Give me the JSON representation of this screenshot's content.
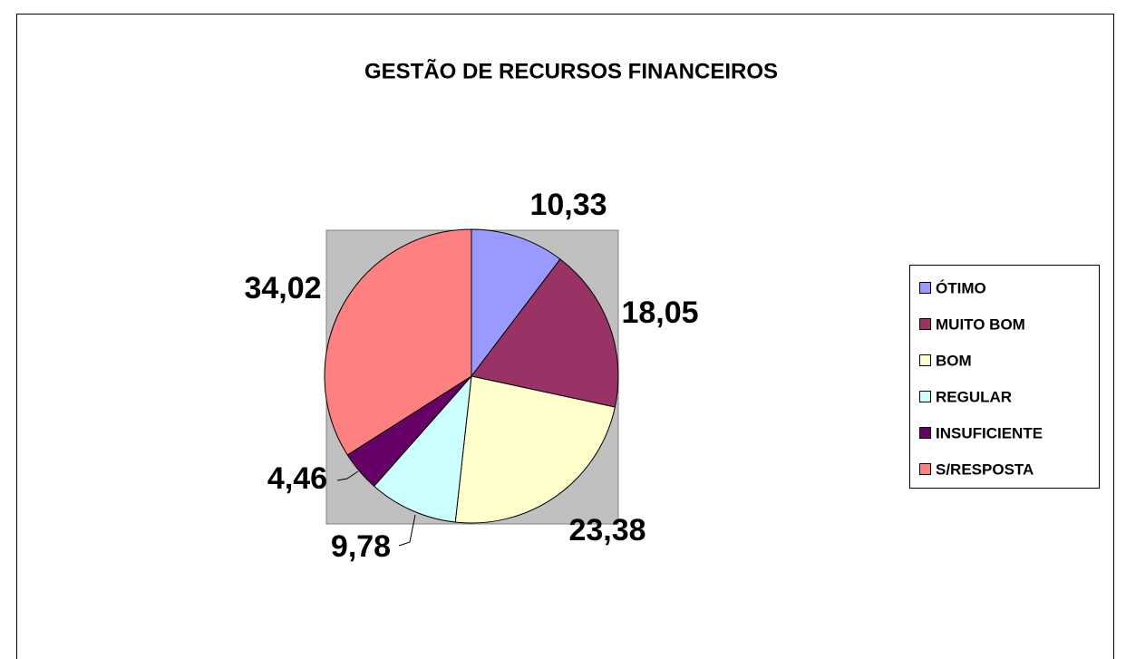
{
  "chart_data": {
    "type": "pie",
    "title": "GESTÃO DE RECURSOS FINANCEIROS",
    "categories": [
      "ÓTIMO",
      "MUITO BOM",
      "BOM",
      "REGULAR",
      "INSUFICIENTE",
      "S/RESPOSTA"
    ],
    "values": [
      10.33,
      18.05,
      23.38,
      9.78,
      4.46,
      34.02
    ],
    "value_labels": [
      "10,33",
      "18,05",
      "23,38",
      "9,78",
      "4,46",
      "34,02"
    ],
    "colors": [
      "#9999ff",
      "#993366",
      "#ffffcc",
      "#ccffff",
      "#660066",
      "#ff8080"
    ],
    "legend": "right"
  }
}
